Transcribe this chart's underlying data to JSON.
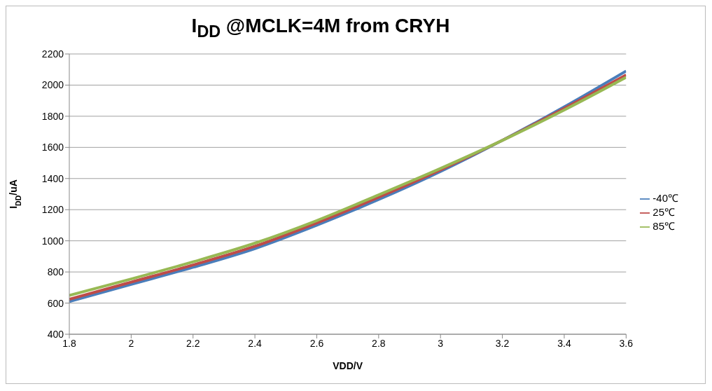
{
  "chart_data": {
    "type": "line",
    "title": "I$_{DD}$ @MCLK=4M from CRYH",
    "xlabel": "VDD/V",
    "ylabel": "I$_{DD}$/uA",
    "x": [
      1.8,
      2.0,
      2.2,
      2.4,
      2.6,
      2.8,
      3.0,
      3.2,
      3.4,
      3.6
    ],
    "series": [
      {
        "name": "-40℃",
        "color": "#4a7ebb",
        "values": [
          610,
          720,
          830,
          950,
          1100,
          1265,
          1445,
          1645,
          1860,
          2090
        ]
      },
      {
        "name": "25℃",
        "color": "#be4b48",
        "values": [
          625,
          735,
          845,
          965,
          1115,
          1280,
          1455,
          1645,
          1850,
          2065
        ]
      },
      {
        "name": "85℃",
        "color": "#98b954",
        "values": [
          650,
          755,
          865,
          985,
          1130,
          1295,
          1465,
          1645,
          1840,
          2050
        ]
      }
    ],
    "xlim": [
      1.8,
      3.6
    ],
    "xticks": [
      1.8,
      2,
      2.2,
      2.4,
      2.6,
      2.8,
      3,
      3.2,
      3.4,
      3.6
    ],
    "ylim": [
      400,
      2200
    ],
    "yticks": [
      400,
      600,
      800,
      1000,
      1200,
      1400,
      1600,
      1800,
      2000,
      2200
    ],
    "grid": "y",
    "legend": "right",
    "marker": "none",
    "line_style": "solid"
  }
}
